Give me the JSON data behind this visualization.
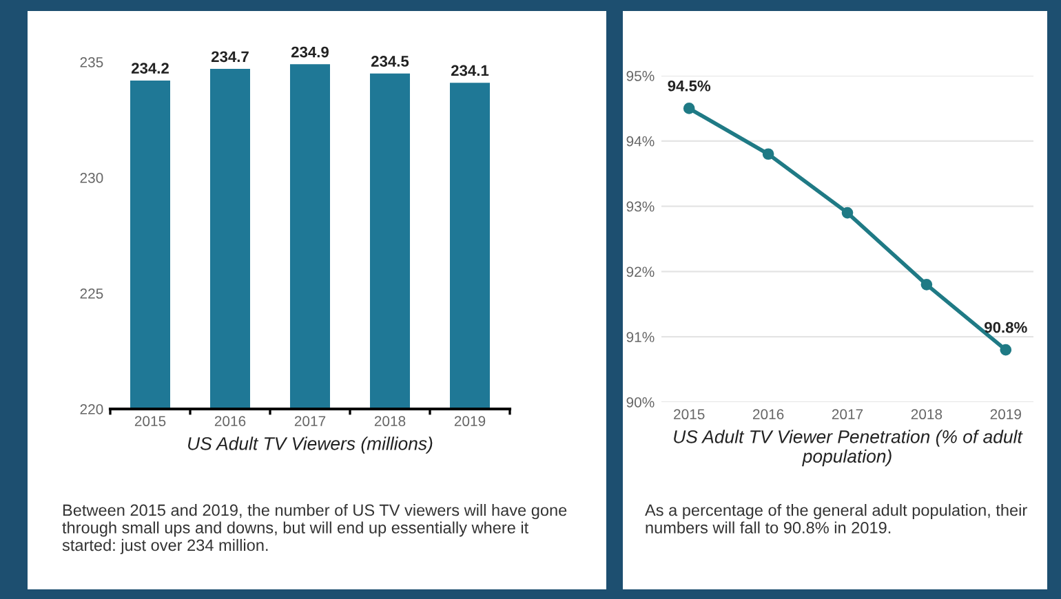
{
  "chart_data": [
    {
      "type": "bar",
      "categories": [
        "2015",
        "2016",
        "2017",
        "2018",
        "2019"
      ],
      "values": [
        234.2,
        234.7,
        234.9,
        234.5,
        234.1
      ],
      "color": "#1f7896",
      "ylim": [
        220,
        235
      ],
      "yticks": [
        220,
        225,
        230,
        235
      ],
      "data_labels": true,
      "xlabel": "US Adult TV Viewers (millions)",
      "grid": false,
      "annotations": [
        "Between 2015 and 2019, the number of US TV viewers will have gone through small ups and downs, but will end up essentially where it started: just over 234 million."
      ]
    },
    {
      "type": "line",
      "categories": [
        "2015",
        "2016",
        "2017",
        "2018",
        "2019"
      ],
      "values": [
        94.5,
        93.8,
        92.9,
        91.8,
        90.8
      ],
      "color": "#1f7a85",
      "marker": "circle",
      "line_style": "solid",
      "grid": "y",
      "value_labels": [
        "94.5%",
        null,
        null,
        null,
        "90.8%"
      ],
      "ylim": [
        90,
        95
      ],
      "yticks": [
        {
          "value": 90,
          "label": "90%"
        },
        {
          "value": 91,
          "label": "91%"
        },
        {
          "value": 92,
          "label": "92%"
        },
        {
          "value": 93,
          "label": "93%"
        },
        {
          "value": 94,
          "label": "94%"
        },
        {
          "value": 95,
          "label": "95%"
        }
      ],
      "xlabel": "US Adult TV Viewer Penetration (% of adult population)",
      "annotations": [
        "As a percentage of the general adult population, their numbers will fall to 90.8% in 2019."
      ]
    }
  ]
}
